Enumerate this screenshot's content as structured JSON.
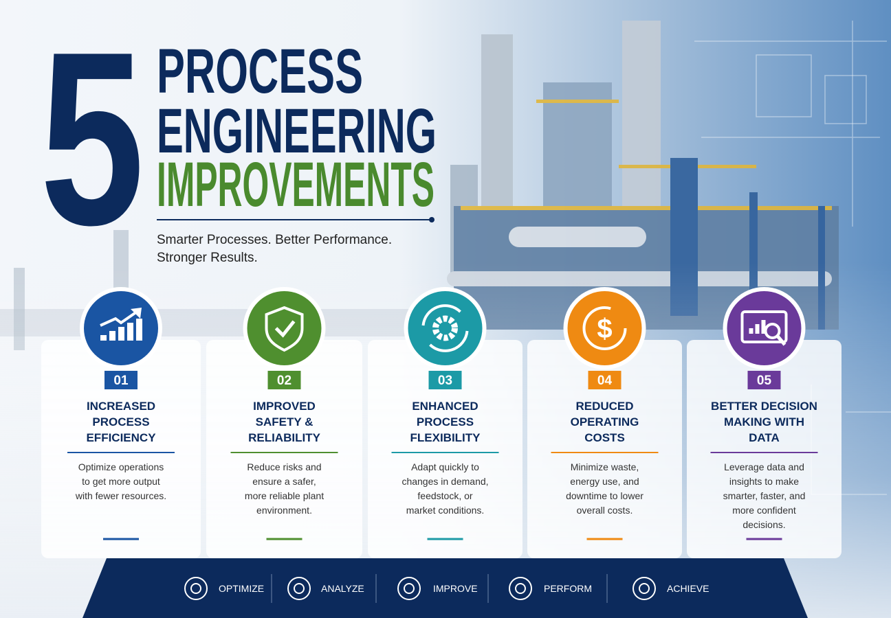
{
  "header": {
    "number": "5",
    "title_lines": [
      "PROCESS",
      "ENGINEERING",
      "IMPROVEMENTS"
    ],
    "subtitle_lines": [
      "Smarter Processes. Better Performance.",
      "Stronger Results."
    ]
  },
  "cards": [
    {
      "number": "01",
      "title_lines": [
        "INCREASED",
        "PROCESS",
        "EFFICIENCY"
      ],
      "description_lines": [
        "Optimize operations",
        "to get more output",
        "with fewer resources."
      ]
    },
    {
      "number": "02",
      "title_lines": [
        "IMPROVED",
        "SAFETY &",
        "RELIABILITY"
      ],
      "description_lines": [
        "Reduce risks and",
        "ensure a safer,",
        "more reliable plant",
        "environment."
      ]
    },
    {
      "number": "03",
      "title_lines": [
        "ENHANCED",
        "PROCESS",
        "FLEXIBILITY"
      ],
      "description_lines": [
        "Adapt quickly to",
        "changes in demand,",
        "feedstock, or",
        "market conditions."
      ]
    },
    {
      "number": "04",
      "title_lines": [
        "REDUCED",
        "OPERATING",
        "COSTS"
      ],
      "description_lines": [
        "Minimize waste,",
        "energy use, and",
        "downtime to lower",
        "overall costs."
      ]
    },
    {
      "number": "05",
      "title_lines": [
        "BETTER DECISION",
        "MAKING WITH",
        "DATA"
      ],
      "description_lines": [
        "Leverage data and",
        "insights to make",
        "smarter, faster, and",
        "more confident",
        "decisions."
      ]
    }
  ],
  "footer": {
    "items": [
      "OPTIMIZE",
      "ANALYZE",
      "IMPROVE",
      "PERFORM",
      "ACHIEVE"
    ]
  }
}
